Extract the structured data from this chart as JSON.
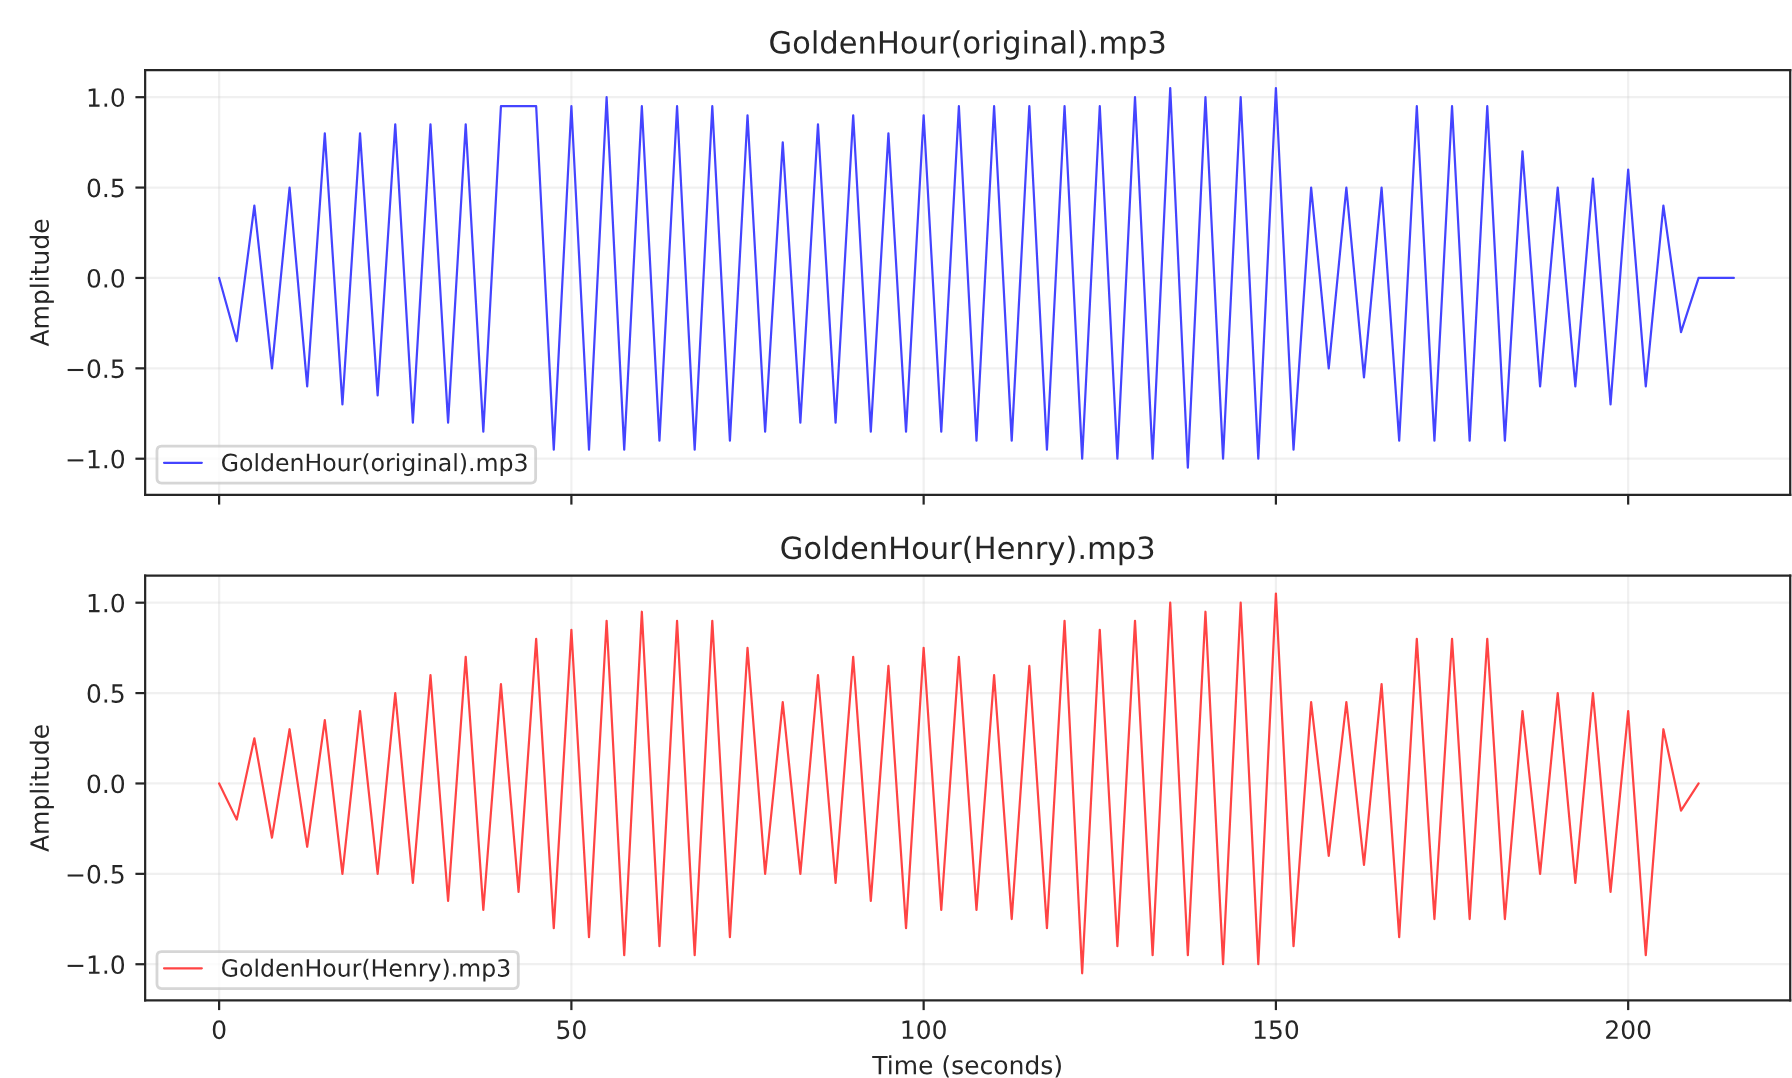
{
  "chart_data": [
    {
      "type": "line",
      "title": "GoldenHour(original).mp3",
      "ylabel": "Amplitude",
      "x": [
        0,
        2.5,
        5,
        7.5,
        10,
        12.5,
        15,
        17.5,
        20,
        22.5,
        25,
        27.5,
        30,
        32.5,
        35,
        37.5,
        40,
        42.5,
        45,
        47.5,
        50,
        52.5,
        55,
        57.5,
        60,
        62.5,
        65,
        67.5,
        70,
        72.5,
        75,
        77.5,
        80,
        82.5,
        85,
        87.5,
        90,
        92.5,
        95,
        97.5,
        100,
        102.5,
        105,
        107.5,
        110,
        112.5,
        115,
        117.5,
        120,
        122.5,
        125,
        127.5,
        130,
        132.5,
        135,
        137.5,
        140,
        142.5,
        145,
        147.5,
        150,
        152.5,
        155,
        157.5,
        160,
        162.5,
        165,
        167.5,
        170,
        172.5,
        175,
        177.5,
        180,
        182.5,
        185,
        187.5,
        190,
        192.5,
        195,
        197.5,
        200,
        202.5,
        205,
        207.5,
        210,
        212.5,
        215
      ],
      "series": [
        {
          "name": "GoldenHour(original).mp3",
          "color": "#4444ff",
          "values": [
            0,
            -0.35,
            0.4,
            -0.5,
            0.5,
            -0.6,
            0.8,
            -0.7,
            0.8,
            -0.65,
            0.85,
            -0.8,
            0.85,
            -0.8,
            0.85,
            -0.85,
            0.95,
            null,
            0.95,
            -0.95,
            0.95,
            -0.95,
            1.0,
            -0.95,
            0.95,
            -0.9,
            0.95,
            -0.95,
            0.95,
            -0.9,
            0.9,
            -0.85,
            0.75,
            -0.8,
            0.85,
            -0.8,
            0.9,
            -0.85,
            0.8,
            -0.85,
            0.9,
            -0.85,
            0.95,
            -0.9,
            0.95,
            -0.9,
            0.95,
            -0.95,
            0.95,
            -1.0,
            0.95,
            -1.0,
            1.0,
            -1.0,
            1.05,
            -1.05,
            1.0,
            -1.0,
            1.0,
            -1.0,
            1.05,
            -0.95,
            0.5,
            -0.5,
            0.5,
            -0.55,
            0.5,
            -0.9,
            0.95,
            -0.9,
            0.95,
            -0.9,
            0.95,
            -0.9,
            0.7,
            -0.6,
            0.5,
            -0.6,
            0.55,
            -0.7,
            0.6,
            -0.6,
            0.4,
            -0.3,
            0,
            0,
            0
          ]
        }
      ],
      "xlim": [
        -10.5,
        223
      ],
      "xticks": [
        0,
        50,
        100,
        150,
        200
      ],
      "ylim": [
        -1.2,
        1.15
      ],
      "yticks": [
        {
          "value": -1.0,
          "label": "−1.0"
        },
        {
          "value": -0.5,
          "label": "−0.5"
        },
        {
          "value": 0.0,
          "label": "0.0"
        },
        {
          "value": 0.5,
          "label": "0.5"
        },
        {
          "value": 1.0,
          "label": "1.0"
        }
      ],
      "tick_labels": "y",
      "grid": true,
      "legend": "bottom left",
      "marker": "none",
      "line_style": "solid"
    },
    {
      "type": "line",
      "title": "GoldenHour(Henry).mp3",
      "xlabel": "Time (seconds)",
      "ylabel": "Amplitude",
      "x": [
        0,
        2.5,
        5,
        7.5,
        10,
        12.5,
        15,
        17.5,
        20,
        22.5,
        25,
        27.5,
        30,
        32.5,
        35,
        37.5,
        40,
        42.5,
        45,
        47.5,
        50,
        52.5,
        55,
        57.5,
        60,
        62.5,
        65,
        67.5,
        70,
        72.5,
        75,
        77.5,
        80,
        82.5,
        85,
        87.5,
        90,
        92.5,
        95,
        97.5,
        100,
        102.5,
        105,
        107.5,
        110,
        112.5,
        115,
        117.5,
        120,
        122.5,
        125,
        127.5,
        130,
        132.5,
        135,
        137.5,
        140,
        142.5,
        145,
        147.5,
        150,
        152.5,
        155,
        157.5,
        160,
        162.5,
        165,
        167.5,
        170,
        172.5,
        175,
        177.5,
        180,
        182.5,
        185,
        187.5,
        190,
        192.5,
        195,
        197.5,
        200,
        202.5,
        205,
        207.5,
        210
      ],
      "series": [
        {
          "name": "GoldenHour(Henry).mp3",
          "color": "#ff4444",
          "values": [
            0,
            -0.2,
            0.25,
            -0.3,
            0.3,
            -0.35,
            0.35,
            -0.5,
            0.4,
            -0.5,
            0.5,
            -0.55,
            0.6,
            -0.65,
            0.7,
            -0.7,
            0.55,
            -0.6,
            0.8,
            -0.8,
            0.85,
            -0.85,
            0.9,
            -0.95,
            0.95,
            -0.9,
            0.9,
            -0.95,
            0.9,
            -0.85,
            0.75,
            -0.5,
            0.45,
            -0.5,
            0.6,
            -0.55,
            0.7,
            -0.65,
            0.65,
            -0.8,
            0.75,
            -0.7,
            0.7,
            -0.7,
            0.6,
            -0.75,
            0.65,
            -0.8,
            0.9,
            -1.05,
            0.85,
            -0.9,
            0.9,
            -0.95,
            1.0,
            -0.95,
            0.95,
            -1.0,
            1.0,
            -1.0,
            1.05,
            -0.9,
            0.45,
            -0.4,
            0.45,
            -0.45,
            0.55,
            -0.85,
            0.8,
            -0.75,
            0.8,
            -0.75,
            0.8,
            -0.75,
            0.4,
            -0.5,
            0.5,
            -0.55,
            0.5,
            -0.6,
            0.4,
            -0.95,
            0.3,
            -0.15,
            0
          ]
        }
      ],
      "xlim": [
        -10.5,
        223
      ],
      "xticks": [
        0,
        50,
        100,
        150,
        200
      ],
      "ylim": [
        -1.2,
        1.15
      ],
      "yticks": [
        {
          "value": -1.0,
          "label": "−1.0"
        },
        {
          "value": -0.5,
          "label": "−0.5"
        },
        {
          "value": 0.0,
          "label": "0.0"
        },
        {
          "value": 0.5,
          "label": "0.5"
        },
        {
          "value": 1.0,
          "label": "1.0"
        }
      ],
      "grid": true,
      "legend": "bottom left",
      "marker": "none",
      "line_style": "solid"
    }
  ]
}
